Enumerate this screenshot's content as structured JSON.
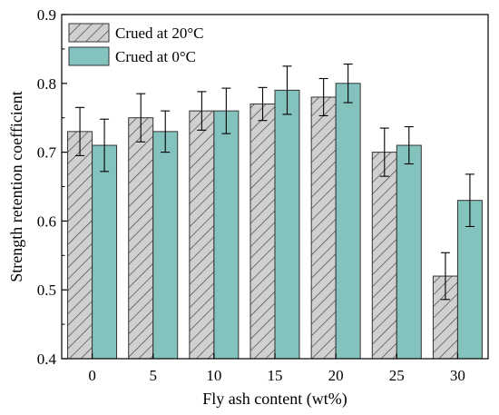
{
  "chart_data": {
    "type": "bar",
    "title": "",
    "xlabel": "Fly ash content (wt%)",
    "ylabel": "Strength retention coefficient",
    "categories": [
      "0",
      "5",
      "10",
      "15",
      "20",
      "25",
      "30"
    ],
    "ylim": [
      0.4,
      0.9
    ],
    "yticks": [
      "0.4",
      "0.5",
      "0.6",
      "0.7",
      "0.8",
      "0.9"
    ],
    "grid": false,
    "legend_position": "top-left",
    "series": [
      {
        "name": "Crued at 20°C",
        "values": [
          0.73,
          0.75,
          0.76,
          0.77,
          0.78,
          0.7,
          0.52
        ],
        "errors": [
          0.035,
          0.035,
          0.028,
          0.024,
          0.027,
          0.035,
          0.034
        ],
        "fill": "#d0d0d0",
        "pattern": "diagonal-hatch"
      },
      {
        "name": "Crued at 0°C",
        "values": [
          0.71,
          0.73,
          0.76,
          0.79,
          0.8,
          0.71,
          0.63
        ],
        "errors": [
          0.038,
          0.03,
          0.033,
          0.035,
          0.028,
          0.027,
          0.038
        ],
        "fill": "#83c2bd",
        "pattern": "solid"
      }
    ]
  }
}
